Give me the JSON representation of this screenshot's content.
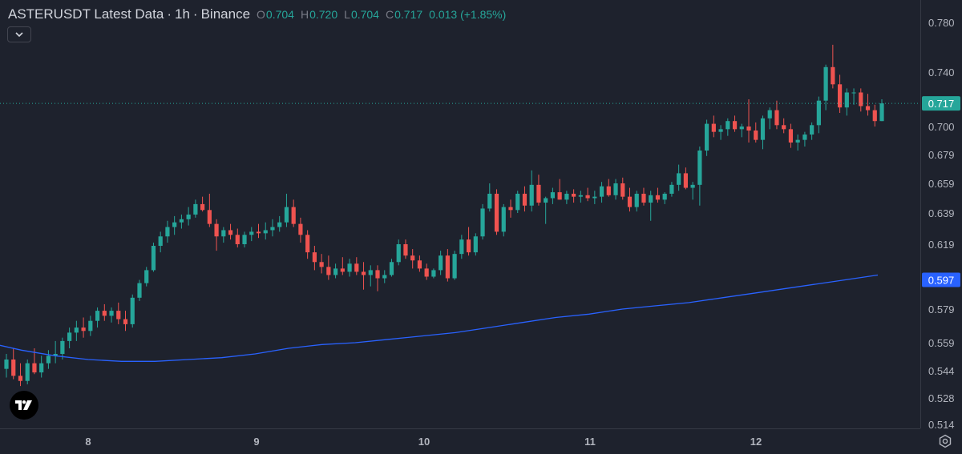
{
  "legend": {
    "symbol": "ASTERUSDT Latest Data",
    "interval": "1h",
    "exchange": "Binance",
    "o_label": "O",
    "o_value": "0.704",
    "h_label": "H",
    "h_value": "0.720",
    "l_label": "L",
    "l_value": "0.704",
    "c_label": "C",
    "c_value": "0.717",
    "change": "0.013 (+1.85%)"
  },
  "colors": {
    "background": "#1e222d",
    "up": "#26a69a",
    "down": "#ef5350",
    "ma_line": "#2962ff",
    "grid_text": "#b2b5be"
  },
  "icons": [
    "chevron-down-icon",
    "tradingview-logo-icon",
    "settings-gear-icon"
  ],
  "chart_data": {
    "type": "candlestick",
    "y_axis_ticks": [
      "0.780",
      "0.740",
      "0.700",
      "0.679",
      "0.659",
      "0.639",
      "0.619",
      "0.579",
      "0.559",
      "0.544",
      "0.528",
      "0.514"
    ],
    "x_axis_ticks": [
      "8",
      "9",
      "10",
      "11",
      "12"
    ],
    "last_price_label": "0.717",
    "ma_label": "0.597",
    "ohlc": [
      [
        0.545,
        0.553,
        0.54,
        0.55
      ],
      [
        0.55,
        0.556,
        0.539,
        0.541
      ],
      [
        0.541,
        0.548,
        0.535,
        0.538
      ],
      [
        0.538,
        0.55,
        0.536,
        0.548
      ],
      [
        0.548,
        0.556,
        0.542,
        0.543
      ],
      [
        0.543,
        0.552,
        0.54,
        0.548
      ],
      [
        0.548,
        0.555,
        0.545,
        0.552
      ],
      [
        0.552,
        0.56,
        0.548,
        0.553
      ],
      [
        0.553,
        0.562,
        0.55,
        0.56
      ],
      [
        0.56,
        0.568,
        0.556,
        0.565
      ],
      [
        0.565,
        0.572,
        0.56,
        0.568
      ],
      [
        0.568,
        0.574,
        0.562,
        0.566
      ],
      [
        0.566,
        0.575,
        0.563,
        0.572
      ],
      [
        0.572,
        0.58,
        0.568,
        0.578
      ],
      [
        0.578,
        0.582,
        0.572,
        0.575
      ],
      [
        0.575,
        0.58,
        0.571,
        0.578
      ],
      [
        0.578,
        0.583,
        0.57,
        0.573
      ],
      [
        0.573,
        0.578,
        0.566,
        0.57
      ],
      [
        0.57,
        0.588,
        0.568,
        0.586
      ],
      [
        0.586,
        0.597,
        0.584,
        0.595
      ],
      [
        0.595,
        0.605,
        0.593,
        0.603
      ],
      [
        0.603,
        0.62,
        0.602,
        0.618
      ],
      [
        0.618,
        0.627,
        0.614,
        0.624
      ],
      [
        0.624,
        0.634,
        0.62,
        0.63
      ],
      [
        0.63,
        0.637,
        0.625,
        0.633
      ],
      [
        0.633,
        0.638,
        0.629,
        0.635
      ],
      [
        0.635,
        0.643,
        0.631,
        0.638
      ],
      [
        0.638,
        0.648,
        0.636,
        0.645
      ],
      [
        0.645,
        0.65,
        0.64,
        0.641
      ],
      [
        0.641,
        0.652,
        0.63,
        0.632
      ],
      [
        0.632,
        0.635,
        0.615,
        0.624
      ],
      [
        0.624,
        0.63,
        0.62,
        0.628
      ],
      [
        0.628,
        0.632,
        0.622,
        0.625
      ],
      [
        0.625,
        0.629,
        0.617,
        0.619
      ],
      [
        0.619,
        0.627,
        0.617,
        0.625
      ],
      [
        0.625,
        0.63,
        0.621,
        0.627
      ],
      [
        0.627,
        0.632,
        0.623,
        0.626
      ],
      [
        0.626,
        0.633,
        0.622,
        0.628
      ],
      [
        0.628,
        0.635,
        0.624,
        0.63
      ],
      [
        0.63,
        0.637,
        0.627,
        0.633
      ],
      [
        0.633,
        0.652,
        0.63,
        0.643
      ],
      [
        0.643,
        0.648,
        0.63,
        0.632
      ],
      [
        0.632,
        0.636,
        0.62,
        0.625
      ],
      [
        0.625,
        0.628,
        0.61,
        0.614
      ],
      [
        0.614,
        0.618,
        0.603,
        0.608
      ],
      [
        0.608,
        0.613,
        0.601,
        0.605
      ],
      [
        0.605,
        0.612,
        0.597,
        0.6
      ],
      [
        0.6,
        0.607,
        0.598,
        0.604
      ],
      [
        0.604,
        0.611,
        0.6,
        0.602
      ],
      [
        0.602,
        0.61,
        0.599,
        0.607
      ],
      [
        0.607,
        0.611,
        0.6,
        0.602
      ],
      [
        0.602,
        0.608,
        0.591,
        0.6
      ],
      [
        0.6,
        0.606,
        0.593,
        0.603
      ],
      [
        0.603,
        0.606,
        0.59,
        0.598
      ],
      [
        0.598,
        0.603,
        0.595,
        0.6
      ],
      [
        0.6,
        0.61,
        0.599,
        0.608
      ],
      [
        0.608,
        0.622,
        0.606,
        0.619
      ],
      [
        0.619,
        0.622,
        0.61,
        0.612
      ],
      [
        0.612,
        0.616,
        0.604,
        0.609
      ],
      [
        0.609,
        0.612,
        0.602,
        0.604
      ],
      [
        0.604,
        0.607,
        0.597,
        0.599
      ],
      [
        0.599,
        0.604,
        0.598,
        0.603
      ],
      [
        0.603,
        0.615,
        0.6,
        0.612
      ],
      [
        0.612,
        0.616,
        0.596,
        0.598
      ],
      [
        0.598,
        0.615,
        0.597,
        0.613
      ],
      [
        0.613,
        0.625,
        0.61,
        0.622
      ],
      [
        0.622,
        0.63,
        0.612,
        0.614
      ],
      [
        0.614,
        0.626,
        0.612,
        0.624
      ],
      [
        0.624,
        0.645,
        0.622,
        0.642
      ],
      [
        0.642,
        0.659,
        0.64,
        0.652
      ],
      [
        0.652,
        0.655,
        0.625,
        0.627
      ],
      [
        0.627,
        0.645,
        0.624,
        0.643
      ],
      [
        0.643,
        0.648,
        0.636,
        0.641
      ],
      [
        0.641,
        0.654,
        0.639,
        0.652
      ],
      [
        0.652,
        0.657,
        0.64,
        0.644
      ],
      [
        0.644,
        0.668,
        0.64,
        0.658
      ],
      [
        0.658,
        0.665,
        0.644,
        0.646
      ],
      [
        0.646,
        0.65,
        0.632,
        0.649
      ],
      [
        0.649,
        0.656,
        0.645,
        0.653
      ],
      [
        0.653,
        0.662,
        0.648,
        0.648
      ],
      [
        0.648,
        0.654,
        0.645,
        0.652
      ],
      [
        0.652,
        0.655,
        0.646,
        0.65
      ],
      [
        0.65,
        0.654,
        0.646,
        0.651
      ],
      [
        0.651,
        0.656,
        0.647,
        0.649
      ],
      [
        0.649,
        0.654,
        0.645,
        0.65
      ],
      [
        0.65,
        0.66,
        0.646,
        0.657
      ],
      [
        0.657,
        0.662,
        0.65,
        0.651
      ],
      [
        0.651,
        0.662,
        0.648,
        0.659
      ],
      [
        0.659,
        0.663,
        0.648,
        0.65
      ],
      [
        0.65,
        0.656,
        0.64,
        0.643
      ],
      [
        0.643,
        0.654,
        0.64,
        0.652
      ],
      [
        0.652,
        0.656,
        0.644,
        0.646
      ],
      [
        0.646,
        0.654,
        0.634,
        0.651
      ],
      [
        0.651,
        0.656,
        0.646,
        0.648
      ],
      [
        0.648,
        0.653,
        0.645,
        0.652
      ],
      [
        0.652,
        0.66,
        0.65,
        0.658
      ],
      [
        0.658,
        0.672,
        0.654,
        0.666
      ],
      [
        0.666,
        0.67,
        0.655,
        0.656
      ],
      [
        0.656,
        0.66,
        0.648,
        0.658
      ],
      [
        0.658,
        0.685,
        0.644,
        0.682
      ],
      [
        0.682,
        0.705,
        0.678,
        0.702
      ],
      [
        0.702,
        0.708,
        0.692,
        0.696
      ],
      [
        0.696,
        0.701,
        0.69,
        0.698
      ],
      [
        0.698,
        0.706,
        0.693,
        0.704
      ],
      [
        0.704,
        0.708,
        0.696,
        0.698
      ],
      [
        0.698,
        0.702,
        0.692,
        0.7
      ],
      [
        0.7,
        0.72,
        0.688,
        0.697
      ],
      [
        0.697,
        0.703,
        0.688,
        0.69
      ],
      [
        0.69,
        0.708,
        0.683,
        0.706
      ],
      [
        0.706,
        0.714,
        0.698,
        0.712
      ],
      [
        0.712,
        0.719,
        0.698,
        0.701
      ],
      [
        0.701,
        0.706,
        0.695,
        0.698
      ],
      [
        0.698,
        0.702,
        0.684,
        0.688
      ],
      [
        0.688,
        0.694,
        0.682,
        0.69
      ],
      [
        0.69,
        0.696,
        0.685,
        0.694
      ],
      [
        0.694,
        0.703,
        0.69,
        0.701
      ],
      [
        0.701,
        0.722,
        0.695,
        0.719
      ],
      [
        0.719,
        0.746,
        0.712,
        0.744
      ],
      [
        0.744,
        0.762,
        0.728,
        0.731
      ],
      [
        0.731,
        0.738,
        0.71,
        0.714
      ],
      [
        0.714,
        0.728,
        0.708,
        0.725
      ],
      [
        0.725,
        0.728,
        0.716,
        0.725
      ],
      [
        0.725,
        0.728,
        0.711,
        0.715
      ],
      [
        0.715,
        0.724,
        0.708,
        0.712
      ],
      [
        0.712,
        0.716,
        0.7,
        0.704
      ],
      [
        0.704,
        0.72,
        0.704,
        0.717
      ]
    ],
    "ma": [
      [
        7.45,
        0.558
      ],
      [
        7.6,
        0.555
      ],
      [
        7.8,
        0.552
      ],
      [
        8.0,
        0.55
      ],
      [
        8.2,
        0.549
      ],
      [
        8.4,
        0.549
      ],
      [
        8.6,
        0.55
      ],
      [
        8.8,
        0.551
      ],
      [
        9.0,
        0.553
      ],
      [
        9.2,
        0.556
      ],
      [
        9.4,
        0.558
      ],
      [
        9.6,
        0.559
      ],
      [
        9.8,
        0.561
      ],
      [
        10.0,
        0.563
      ],
      [
        10.2,
        0.565
      ],
      [
        10.4,
        0.568
      ],
      [
        10.6,
        0.571
      ],
      [
        10.8,
        0.574
      ],
      [
        11.0,
        0.576
      ],
      [
        11.2,
        0.579
      ],
      [
        11.4,
        0.581
      ],
      [
        11.6,
        0.583
      ],
      [
        11.8,
        0.586
      ],
      [
        12.0,
        0.589
      ],
      [
        12.2,
        0.592
      ],
      [
        12.4,
        0.595
      ],
      [
        12.6,
        0.598
      ],
      [
        12.73,
        0.6
      ]
    ]
  }
}
